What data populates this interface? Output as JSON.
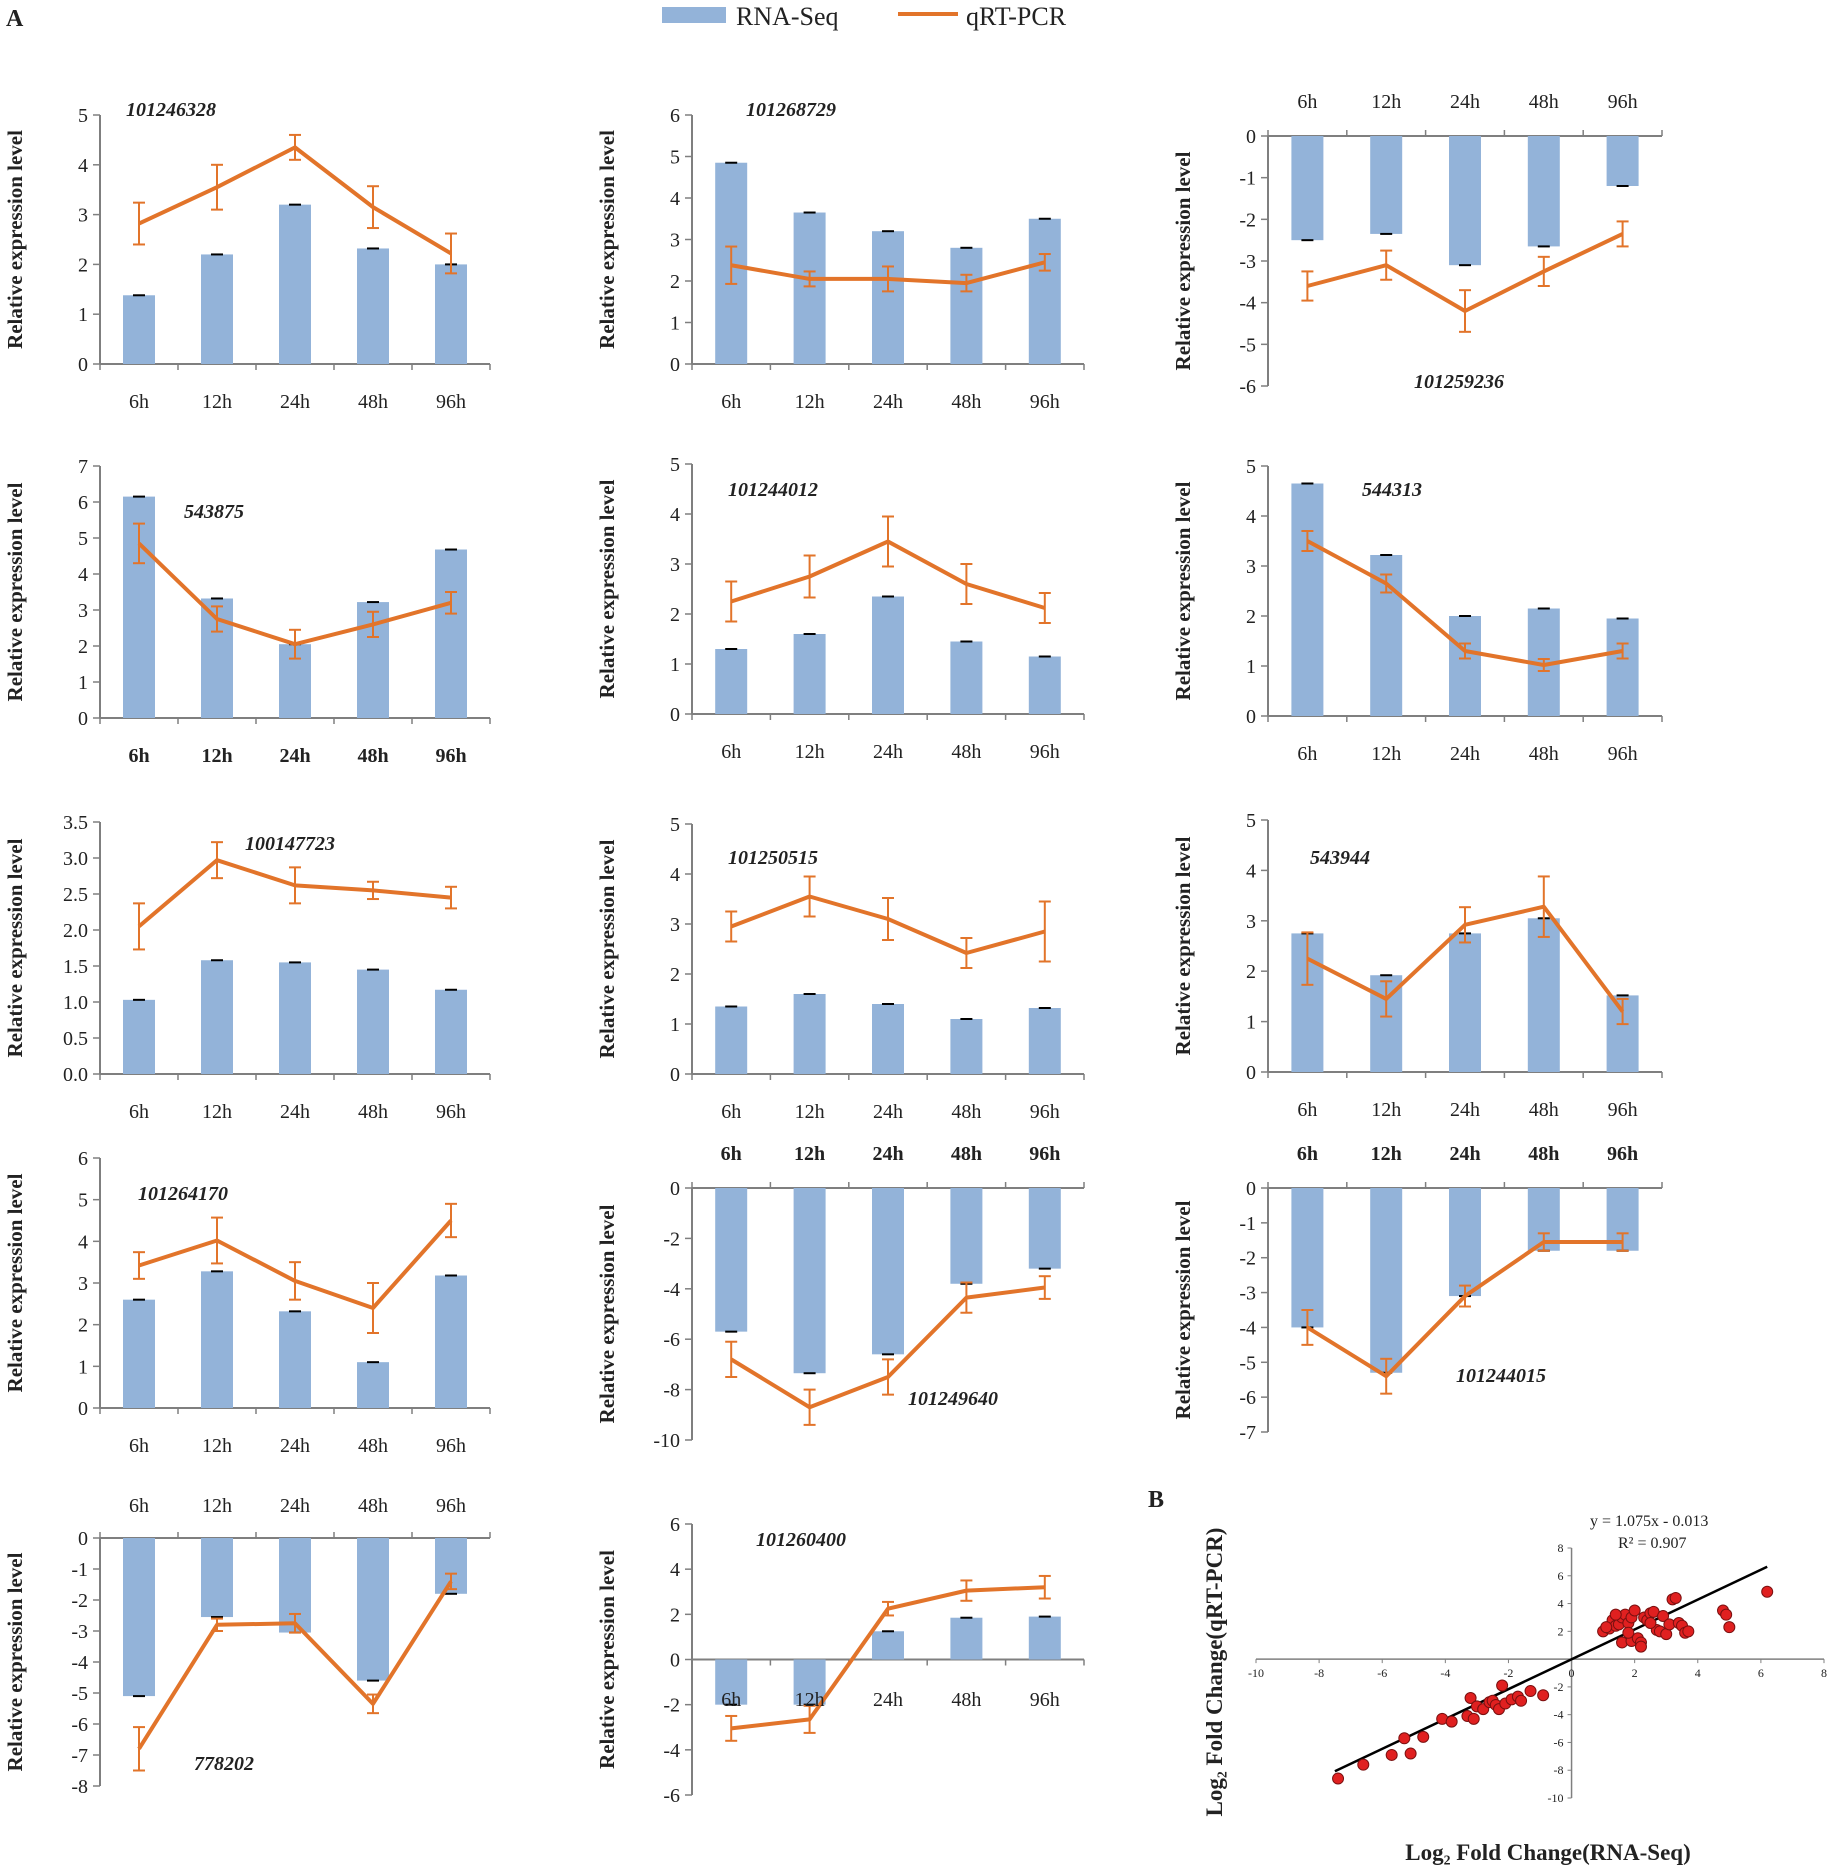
{
  "figure": {
    "panel_a_label": "A",
    "panel_b_label": "B",
    "legend": {
      "bar_label": "RNA-Seq",
      "line_label": "qRT-PCR"
    },
    "colors": {
      "bar": "#93b3d9",
      "bar_cap": "#000000",
      "line": "#e2742a",
      "axis": "#7f7f7f",
      "text": "#222222",
      "dot": "#e02020",
      "dot_edge": "#7a1010",
      "fit": "#000000"
    }
  },
  "chart_data": [
    {
      "type": "bar+line",
      "title": "101246328",
      "ylabel": "Relative expression level",
      "categories": [
        "6h",
        "12h",
        "24h",
        "48h",
        "96h"
      ],
      "ylim": [
        0,
        5
      ],
      "yticks": [
        "0",
        "1",
        "2",
        "3",
        "4",
        "5"
      ],
      "categories_on_top": false,
      "bold_categories": false,
      "series": [
        {
          "name": "RNA-Seq",
          "values": [
            1.38,
            2.2,
            3.2,
            2.32,
            2.0
          ]
        },
        {
          "name": "qRT-PCR",
          "values": [
            2.82,
            3.55,
            4.35,
            3.15,
            2.22
          ],
          "errors": [
            0.42,
            0.45,
            0.25,
            0.42,
            0.4
          ]
        }
      ]
    },
    {
      "type": "bar+line",
      "title": "101268729",
      "ylabel": "Relative expression level",
      "categories": [
        "6h",
        "12h",
        "24h",
        "48h",
        "96h"
      ],
      "ylim": [
        0,
        6
      ],
      "yticks": [
        "0",
        "1",
        "2",
        "3",
        "4",
        "5",
        "6"
      ],
      "categories_on_top": false,
      "bold_categories": false,
      "series": [
        {
          "name": "RNA-Seq",
          "values": [
            4.85,
            3.65,
            3.2,
            2.8,
            3.5
          ]
        },
        {
          "name": "qRT-PCR",
          "values": [
            2.38,
            2.05,
            2.05,
            1.95,
            2.45
          ],
          "errors": [
            0.45,
            0.18,
            0.3,
            0.2,
            0.2
          ]
        }
      ]
    },
    {
      "type": "bar+line",
      "title": "101259236",
      "ylabel": "Relative expression level",
      "categories": [
        "6h",
        "12h",
        "24h",
        "48h",
        "96h"
      ],
      "ylim": [
        -6,
        0
      ],
      "yticks": [
        "-6",
        "-5",
        "-4",
        "-3",
        "-2",
        "-1",
        "0"
      ],
      "categories_on_top": true,
      "bold_categories": false,
      "series": [
        {
          "name": "RNA-Seq",
          "values": [
            -2.5,
            -2.35,
            -3.1,
            -2.65,
            -1.2
          ]
        },
        {
          "name": "qRT-PCR",
          "values": [
            -3.6,
            -3.1,
            -4.2,
            -3.25,
            -2.35
          ],
          "errors": [
            0.35,
            0.35,
            0.5,
            0.35,
            0.3
          ]
        }
      ]
    },
    {
      "type": "bar+line",
      "title": "543875",
      "ylabel": "Relative expression level",
      "categories": [
        "6h",
        "12h",
        "24h",
        "48h",
        "96h"
      ],
      "ylim": [
        0,
        7
      ],
      "yticks": [
        "0",
        "1",
        "2",
        "3",
        "4",
        "5",
        "6",
        "7"
      ],
      "categories_on_top": false,
      "bold_categories": true,
      "series": [
        {
          "name": "RNA-Seq",
          "values": [
            6.15,
            3.32,
            2.05,
            3.22,
            4.68
          ]
        },
        {
          "name": "qRT-PCR",
          "values": [
            4.85,
            2.75,
            2.05,
            2.6,
            3.2
          ],
          "errors": [
            0.55,
            0.35,
            0.4,
            0.35,
            0.3
          ]
        }
      ]
    },
    {
      "type": "bar+line",
      "title": "101244012",
      "ylabel": "Relative expression level",
      "categories": [
        "6h",
        "12h",
        "24h",
        "48h",
        "96h"
      ],
      "ylim": [
        0,
        5
      ],
      "yticks": [
        "0",
        "1",
        "2",
        "3",
        "4",
        "5"
      ],
      "categories_on_top": false,
      "bold_categories": false,
      "series": [
        {
          "name": "RNA-Seq",
          "values": [
            1.3,
            1.6,
            2.35,
            1.45,
            1.15
          ]
        },
        {
          "name": "qRT-PCR",
          "values": [
            2.25,
            2.75,
            3.45,
            2.6,
            2.12
          ],
          "errors": [
            0.4,
            0.42,
            0.5,
            0.4,
            0.3
          ]
        }
      ]
    },
    {
      "type": "bar+line",
      "title": "544313",
      "ylabel": "Relative expression level",
      "categories": [
        "6h",
        "12h",
        "24h",
        "48h",
        "96h"
      ],
      "ylim": [
        0,
        5
      ],
      "yticks": [
        "0",
        "1",
        "2",
        "3",
        "4",
        "5"
      ],
      "categories_on_top": false,
      "bold_categories": false,
      "series": [
        {
          "name": "RNA-Seq",
          "values": [
            4.65,
            3.22,
            2.0,
            2.15,
            1.95
          ]
        },
        {
          "name": "qRT-PCR",
          "values": [
            3.5,
            2.65,
            1.3,
            1.02,
            1.3
          ],
          "errors": [
            0.2,
            0.18,
            0.15,
            0.12,
            0.15
          ]
        }
      ]
    },
    {
      "type": "bar+line",
      "title": "100147723",
      "ylabel": "Relative expression level",
      "categories": [
        "6h",
        "12h",
        "24h",
        "48h",
        "96h"
      ],
      "ylim": [
        0,
        3.5
      ],
      "yticks": [
        "0.0",
        "0.5",
        "1.0",
        "1.5",
        "2.0",
        "2.5",
        "3.0",
        "3.5"
      ],
      "categories_on_top": false,
      "bold_categories": false,
      "series": [
        {
          "name": "RNA-Seq",
          "values": [
            1.03,
            1.58,
            1.55,
            1.45,
            1.17
          ]
        },
        {
          "name": "qRT-PCR",
          "values": [
            2.05,
            2.97,
            2.62,
            2.55,
            2.45
          ],
          "errors": [
            0.32,
            0.25,
            0.25,
            0.12,
            0.15
          ]
        }
      ]
    },
    {
      "type": "bar+line",
      "title": "101250515",
      "ylabel": "Relative expression level",
      "categories": [
        "6h",
        "12h",
        "24h",
        "48h",
        "96h"
      ],
      "ylim": [
        0,
        5
      ],
      "yticks": [
        "0",
        "1",
        "2",
        "3",
        "4",
        "5"
      ],
      "categories_on_top": false,
      "bold_categories": false,
      "series": [
        {
          "name": "RNA-Seq",
          "values": [
            1.35,
            1.6,
            1.4,
            1.1,
            1.32
          ]
        },
        {
          "name": "qRT-PCR",
          "values": [
            2.95,
            3.55,
            3.1,
            2.42,
            2.85
          ],
          "errors": [
            0.3,
            0.4,
            0.42,
            0.3,
            0.6
          ]
        }
      ]
    },
    {
      "type": "bar+line",
      "title": "543944",
      "ylabel": "Relative expression level",
      "categories": [
        "6h",
        "12h",
        "24h",
        "48h",
        "96h"
      ],
      "ylim": [
        0,
        5
      ],
      "yticks": [
        "0",
        "1",
        "2",
        "3",
        "4",
        "5"
      ],
      "categories_on_top": false,
      "bold_categories": false,
      "series": [
        {
          "name": "RNA-Seq",
          "values": [
            2.75,
            1.92,
            2.75,
            3.05,
            1.52
          ]
        },
        {
          "name": "qRT-PCR",
          "values": [
            2.25,
            1.45,
            2.92,
            3.28,
            1.2
          ],
          "errors": [
            0.52,
            0.35,
            0.35,
            0.6,
            0.25
          ]
        }
      ]
    },
    {
      "type": "bar+line",
      "title": "101264170",
      "ylabel": "Relative expression level",
      "categories": [
        "6h",
        "12h",
        "24h",
        "48h",
        "96h"
      ],
      "ylim": [
        0,
        6
      ],
      "yticks": [
        "0",
        "1",
        "2",
        "3",
        "4",
        "5",
        "6"
      ],
      "categories_on_top": false,
      "bold_categories": false,
      "series": [
        {
          "name": "RNA-Seq",
          "values": [
            2.6,
            3.28,
            2.32,
            1.1,
            3.18
          ]
        },
        {
          "name": "qRT-PCR",
          "values": [
            3.42,
            4.02,
            3.05,
            2.4,
            4.5
          ],
          "errors": [
            0.32,
            0.55,
            0.45,
            0.6,
            0.4
          ]
        }
      ]
    },
    {
      "type": "bar+line",
      "title": "101249640",
      "ylabel": "Relative expression level",
      "categories": [
        "6h",
        "12h",
        "24h",
        "48h",
        "96h"
      ],
      "ylim": [
        -10,
        0
      ],
      "yticks": [
        "-10",
        "-8",
        "-6",
        "-4",
        "-2",
        "0"
      ],
      "categories_on_top": true,
      "bold_categories": true,
      "series": [
        {
          "name": "RNA-Seq",
          "values": [
            -5.7,
            -7.35,
            -6.6,
            -3.8,
            -3.2
          ]
        },
        {
          "name": "qRT-PCR",
          "values": [
            -6.8,
            -8.7,
            -7.5,
            -4.35,
            -3.95
          ],
          "errors": [
            0.7,
            0.7,
            0.7,
            0.6,
            0.45
          ]
        }
      ]
    },
    {
      "type": "bar+line",
      "title": "101244015",
      "ylabel": "Relative expression level",
      "categories": [
        "6h",
        "12h",
        "24h",
        "48h",
        "96h"
      ],
      "ylim": [
        -7,
        0
      ],
      "yticks": [
        "-7",
        "-6",
        "-5",
        "-4",
        "-3",
        "-2",
        "-1",
        "0"
      ],
      "categories_on_top": true,
      "bold_categories": true,
      "series": [
        {
          "name": "RNA-Seq",
          "values": [
            -4.0,
            -5.3,
            -3.1,
            -1.8,
            -1.8
          ]
        },
        {
          "name": "qRT-PCR",
          "values": [
            -4.0,
            -5.4,
            -3.1,
            -1.55,
            -1.55
          ],
          "errors": [
            0.5,
            0.5,
            0.3,
            0.25,
            0.25
          ]
        }
      ]
    },
    {
      "type": "bar+line",
      "title": "778202",
      "ylabel": "Relative expression level",
      "categories": [
        "6h",
        "12h",
        "24h",
        "48h",
        "96h"
      ],
      "ylim": [
        -8,
        0
      ],
      "yticks": [
        "-8",
        "-7",
        "-6",
        "-5",
        "-4",
        "-3",
        "-2",
        "-1",
        "0"
      ],
      "categories_on_top": true,
      "bold_categories": false,
      "series": [
        {
          "name": "RNA-Seq",
          "values": [
            -5.1,
            -2.55,
            -3.05,
            -4.6,
            -1.8
          ]
        },
        {
          "name": "qRT-PCR",
          "values": [
            -6.8,
            -2.8,
            -2.75,
            -5.35,
            -1.4
          ],
          "errors": [
            0.7,
            0.2,
            0.3,
            0.3,
            0.25
          ]
        }
      ]
    },
    {
      "type": "bar+line",
      "title": "101260400",
      "ylabel": "Relative expression level",
      "categories": [
        "6h",
        "12h",
        "24h",
        "48h",
        "96h"
      ],
      "ylim": [
        -6,
        6
      ],
      "yticks": [
        "-6",
        "-4",
        "-2",
        "0",
        "2",
        "4",
        "6"
      ],
      "categories_on_top": false,
      "categories_at_zero": true,
      "bold_categories": false,
      "series": [
        {
          "name": "RNA-Seq",
          "values": [
            -2.0,
            -2.0,
            1.25,
            1.85,
            1.9
          ]
        },
        {
          "name": "qRT-PCR",
          "values": [
            -3.05,
            -2.65,
            2.25,
            3.05,
            3.2
          ],
          "errors": [
            0.55,
            0.6,
            0.3,
            0.45,
            0.5
          ]
        }
      ]
    },
    {
      "type": "scatter",
      "title": "",
      "xlabel": "Log₂ Fold Change(RNA-Seq)",
      "ylabel": "Log₂ Fold Change(qRT-PCR)",
      "xlim": [
        -10,
        8
      ],
      "ylim": [
        -10,
        8
      ],
      "xticks": [
        "-10",
        "-8",
        "-6",
        "-4",
        "-2",
        "0",
        "2",
        "4",
        "6",
        "8"
      ],
      "yticks": [
        "-10",
        "-8",
        "-6",
        "-4",
        "-2",
        "0",
        "2",
        "4",
        "6",
        "8"
      ],
      "equation": "y = 1.075x - 0.013",
      "r2": "R² = 0.907",
      "fit": {
        "slope": 1.075,
        "intercept": -0.013,
        "x_range": [
          -7.5,
          6.2
        ]
      },
      "points": [
        [
          -7.4,
          -8.6
        ],
        [
          -6.6,
          -7.6
        ],
        [
          -5.7,
          -6.9
        ],
        [
          -5.1,
          -6.8
        ],
        [
          -5.3,
          -5.7
        ],
        [
          -4.7,
          -5.6
        ],
        [
          -4.1,
          -4.3
        ],
        [
          -3.8,
          -4.5
        ],
        [
          -3.3,
          -4.1
        ],
        [
          -3.1,
          -4.3
        ],
        [
          -3.2,
          -2.8
        ],
        [
          -3.0,
          -3.4
        ],
        [
          -2.8,
          -3.6
        ],
        [
          -2.6,
          -3.1
        ],
        [
          -2.5,
          -3.0
        ],
        [
          -2.4,
          -3.3
        ],
        [
          -2.3,
          -3.6
        ],
        [
          -2.1,
          -3.2
        ],
        [
          -1.9,
          -2.9
        ],
        [
          -1.7,
          -2.7
        ],
        [
          -1.6,
          -3.0
        ],
        [
          -2.2,
          -1.9
        ],
        [
          -1.3,
          -2.3
        ],
        [
          -0.9,
          -2.6
        ],
        [
          1.0,
          2.0
        ],
        [
          1.2,
          2.2
        ],
        [
          1.3,
          2.8
        ],
        [
          1.4,
          2.4
        ],
        [
          1.5,
          2.5
        ],
        [
          1.6,
          3.0
        ],
        [
          1.7,
          3.2
        ],
        [
          1.8,
          2.6
        ],
        [
          1.9,
          3.0
        ],
        [
          1.6,
          1.2
        ],
        [
          1.9,
          1.3
        ],
        [
          2.0,
          3.5
        ],
        [
          2.1,
          1.5
        ],
        [
          2.2,
          1.2
        ],
        [
          2.3,
          3.0
        ],
        [
          2.4,
          2.8
        ],
        [
          2.5,
          3.3
        ],
        [
          2.6,
          3.4
        ],
        [
          2.7,
          2.1
        ],
        [
          2.8,
          2.0
        ],
        [
          2.9,
          3.1
        ],
        [
          3.0,
          1.8
        ],
        [
          3.1,
          2.5
        ],
        [
          3.2,
          4.3
        ],
        [
          3.3,
          4.4
        ],
        [
          3.4,
          2.6
        ],
        [
          3.5,
          2.4
        ],
        [
          3.6,
          1.9
        ],
        [
          4.8,
          3.5
        ],
        [
          4.9,
          3.2
        ],
        [
          5.0,
          2.3
        ],
        [
          6.2,
          4.85
        ],
        [
          1.1,
          2.3
        ],
        [
          1.4,
          3.2
        ],
        [
          2.2,
          0.9
        ],
        [
          2.5,
          2.6
        ],
        [
          3.7,
          2.0
        ],
        [
          1.8,
          1.9
        ]
      ]
    }
  ]
}
